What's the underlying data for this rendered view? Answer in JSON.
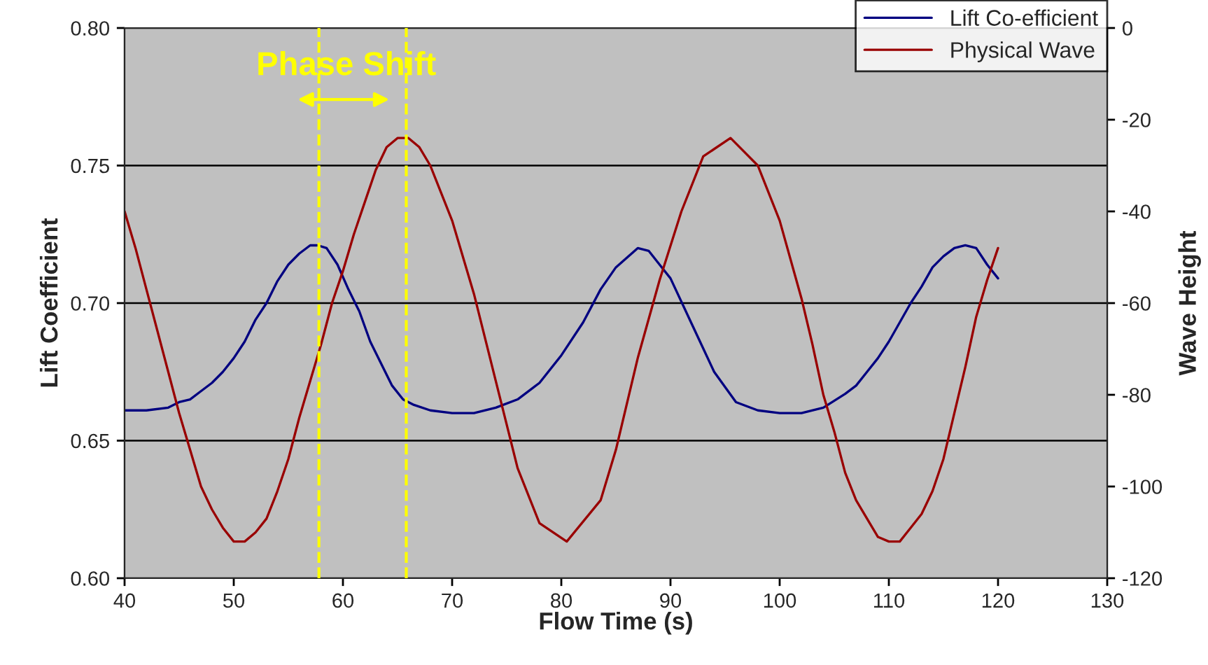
{
  "chart_data": {
    "type": "line",
    "xlabel": "Flow Time (s)",
    "ylabel": "Lift Coefficient",
    "y2label": "Wave Height",
    "annotations": [
      "Phase Shift"
    ],
    "xlim": [
      40,
      130
    ],
    "xticks": [
      40,
      50,
      60,
      70,
      80,
      90,
      100,
      110,
      120,
      130
    ],
    "ylim": [
      0.6,
      0.8
    ],
    "yticks": [
      {
        "value": 0.6,
        "label": "0.60"
      },
      {
        "value": 0.65,
        "label": "0.65"
      },
      {
        "value": 0.7,
        "label": "0.70"
      },
      {
        "value": 0.75,
        "label": "0.75"
      },
      {
        "value": 0.8,
        "label": "0.80"
      }
    ],
    "y2lim": [
      -120,
      0
    ],
    "y2ticks": [
      -120,
      -100,
      -80,
      -60,
      -40,
      -20,
      0
    ],
    "grid": "y",
    "legend": "top right",
    "marker": "none",
    "line_style": "solid",
    "ref_lines": [
      {
        "axis": "x",
        "value": 57.8,
        "color": "#ffff00",
        "line_style": "dashed"
      },
      {
        "axis": "x",
        "value": 65.8,
        "color": "#ffff00",
        "line_style": "dashed"
      }
    ],
    "series": [
      {
        "name": "Lift Co-efficient",
        "color": "#000080",
        "x": [
          40,
          42,
          44,
          45,
          46,
          47,
          48,
          49,
          50,
          51,
          52,
          53,
          54,
          55,
          56,
          57,
          57.7,
          58.5,
          59.5,
          60.5,
          61.5,
          62.5,
          63.5,
          64.5,
          65.5,
          66.5,
          68,
          70,
          72,
          74,
          76,
          78,
          80,
          82,
          83.6,
          85,
          87,
          88,
          89,
          90,
          92,
          94,
          96,
          98,
          100,
          102,
          104,
          106,
          107,
          108,
          109,
          110,
          111,
          112,
          113,
          114,
          115,
          116,
          117,
          118,
          119,
          120
        ],
        "values": [
          0.661,
          0.661,
          0.662,
          0.664,
          0.665,
          0.668,
          0.671,
          0.675,
          0.68,
          0.686,
          0.694,
          0.7,
          0.708,
          0.714,
          0.718,
          0.721,
          0.721,
          0.72,
          0.714,
          0.705,
          0.697,
          0.686,
          0.678,
          0.67,
          0.665,
          0.663,
          0.661,
          0.66,
          0.66,
          0.662,
          0.665,
          0.671,
          0.681,
          0.693,
          0.705,
          0.713,
          0.72,
          0.719,
          0.714,
          0.709,
          0.692,
          0.675,
          0.664,
          0.661,
          0.66,
          0.66,
          0.662,
          0.667,
          0.67,
          0.675,
          0.68,
          0.686,
          0.693,
          0.7,
          0.706,
          0.713,
          0.717,
          0.72,
          0.721,
          0.72,
          0.714,
          0.709
        ]
      },
      {
        "name": "Physical Wave",
        "color": "#990000",
        "axis": "y2",
        "x": [
          40,
          41,
          42,
          43,
          44,
          45,
          46,
          47,
          48,
          49,
          50,
          51,
          52,
          53,
          54,
          55,
          56,
          57,
          58,
          59,
          60,
          61,
          62,
          63,
          64,
          65,
          65.6,
          66,
          67,
          68,
          70,
          72,
          74,
          76,
          78,
          80.5,
          83.6,
          85,
          87,
          89,
          91,
          93,
          95.5,
          98,
          100,
          102,
          103,
          104,
          105,
          106,
          107,
          108,
          109,
          110,
          111,
          112,
          113,
          114,
          115,
          116,
          117,
          118,
          119,
          120
        ],
        "values": [
          -40,
          -48,
          -57,
          -66,
          -75,
          -84,
          -92,
          -100,
          -105,
          -109,
          -112,
          -112,
          -110,
          -107,
          -101,
          -94,
          -85,
          -77,
          -69,
          -60,
          -53,
          -45,
          -38,
          -31,
          -26,
          -24,
          -24,
          -24,
          -26,
          -30,
          -42,
          -58,
          -77,
          -96,
          -108,
          -112,
          -103,
          -92,
          -72,
          -55,
          -40,
          -28,
          -24,
          -30,
          -42,
          -59,
          -69,
          -80,
          -88,
          -97,
          -103,
          -107,
          -111,
          -112,
          -112,
          -109,
          -106,
          -101,
          -94,
          -84,
          -74,
          -63,
          -55,
          -48
        ]
      }
    ]
  }
}
